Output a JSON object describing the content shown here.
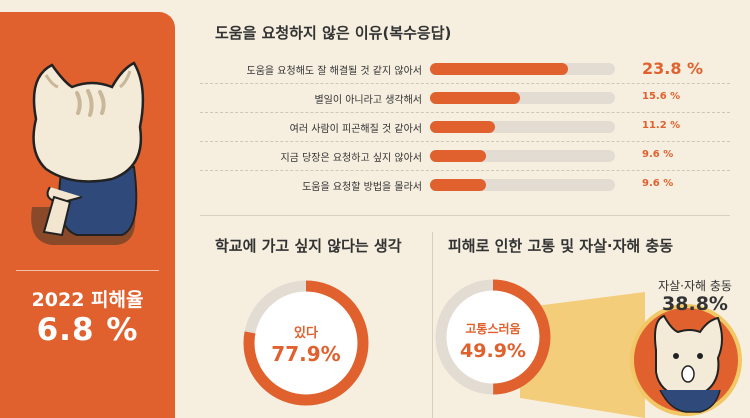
{
  "left_panel": {
    "rate_label": "2022 피해율",
    "rate_value": "6.8 %"
  },
  "chart_data": [
    {
      "type": "bar",
      "title": "도움을 요청하지 않은 이유(복수응답)",
      "categories": [
        "도움을 요청해도 잘 해결될 것 같지 않아서",
        "별일이 아니라고 생각해서",
        "여러 사람이 피곤해질 것 같아서",
        "지금 당장은 요청하고 싶지 않아서",
        "도움을 요청할 방법을 몰라서"
      ],
      "values": [
        23.8,
        15.6,
        11.2,
        9.6,
        9.6
      ],
      "value_labels": [
        "23.8 %",
        "15.6 %",
        "11.2 %",
        "9.6 %",
        "9.6 %"
      ],
      "xlim": [
        0,
        32
      ]
    },
    {
      "type": "pie",
      "title": "학교에 가고 싶지 않다는 생각",
      "slices": [
        {
          "label": "있다",
          "value": 77.9
        }
      ],
      "value_label": "77.9%"
    },
    {
      "type": "pie",
      "title": "피해로 인한 고통 및 자살·자해 충동",
      "slices": [
        {
          "label": "고통스러움",
          "value": 49.9
        },
        {
          "label": "자살·자해 충동",
          "value": 38.8
        }
      ],
      "value_label": "49.9%",
      "callout_label": "38.8%"
    }
  ],
  "colors": {
    "accent": "#e0612e",
    "track": "#e2dcd3",
    "background": "#f6efe0",
    "callout": "#f2c766"
  }
}
